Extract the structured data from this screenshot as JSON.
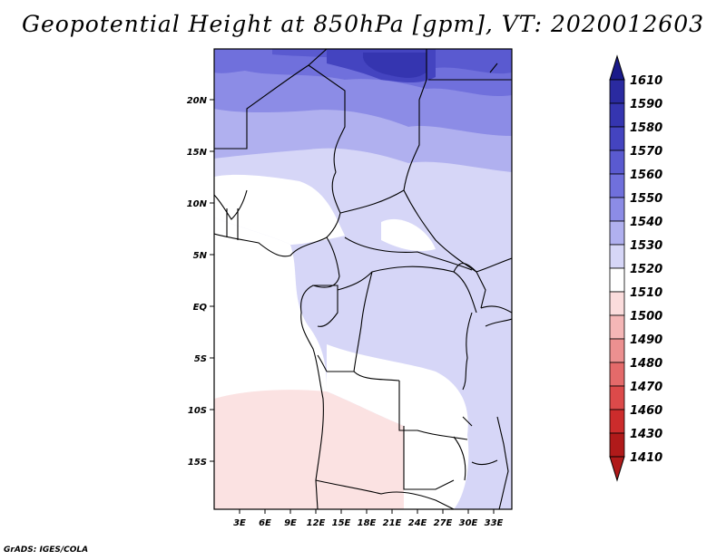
{
  "title": "Geopotential Height at 850hPa [gpm], VT: 2020012603",
  "footer": "GrADS: IGES/COLA",
  "map": {
    "variable": "Geopotential Height",
    "level": "850hPa",
    "units": "gpm",
    "valid_time": "2020012603",
    "lon_range": [
      0,
      35
    ],
    "lat_range": [
      -20,
      24
    ],
    "x_ticks": [
      "3E",
      "6E",
      "9E",
      "12E",
      "15E",
      "18E",
      "21E",
      "24E",
      "27E",
      "30E",
      "33E"
    ],
    "y_ticks": [
      "20N",
      "15N",
      "10N",
      "5N",
      "EQ",
      "5S",
      "10S",
      "15S"
    ]
  },
  "colorbar": {
    "levels": [
      "1610",
      "1590",
      "1580",
      "1570",
      "1560",
      "1550",
      "1540",
      "1530",
      "1520",
      "1510",
      "1500",
      "1490",
      "1480",
      "1470",
      "1460",
      "1430",
      "1410"
    ],
    "colors": [
      "#1a1a8a",
      "#2a2aa0",
      "#3535b0",
      "#4444c0",
      "#5a5ad0",
      "#7070dc",
      "#8c8ce6",
      "#b0b0ef",
      "#d6d6f7",
      "#ffffff",
      "#fbdcdc",
      "#f4b6b6",
      "#ec9090",
      "#e46a6a",
      "#dc4a4a",
      "#cc2c2c",
      "#b01a1a"
    ]
  }
}
